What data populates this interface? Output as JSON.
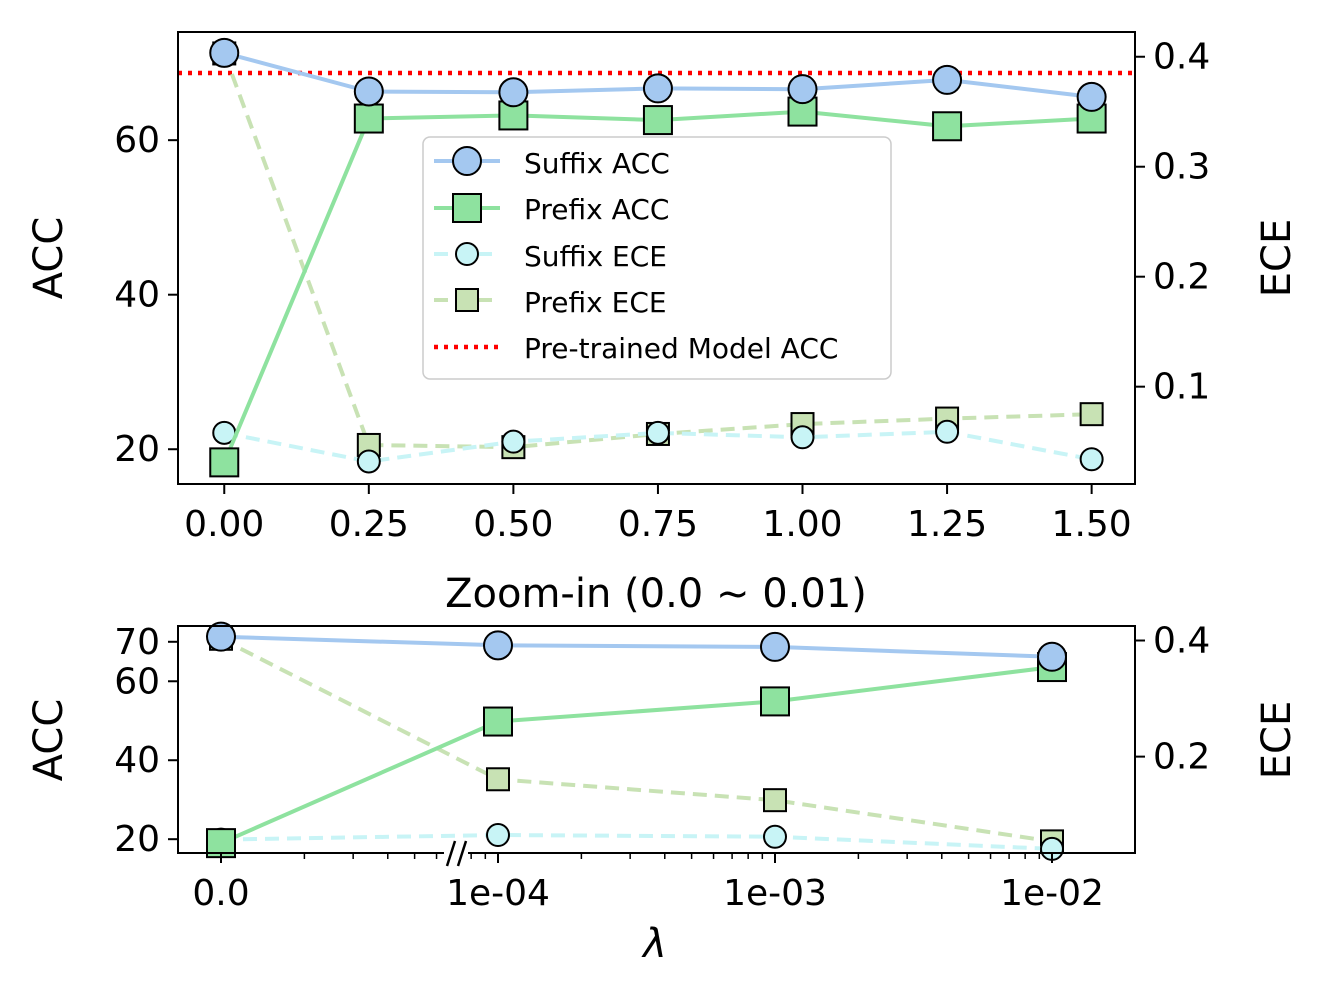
{
  "colors": {
    "suffix_acc": "#a4c8f0",
    "prefix_acc": "#8ee29f",
    "suffix_ece": "#c8f4f6",
    "prefix_ece": "#c8e2b4",
    "pretrained": "#ff0000"
  },
  "chart_data": [
    {
      "type": "line",
      "title": "",
      "xlabel": "",
      "ylabel": "ACC",
      "y2label": "ECE",
      "x": [
        0.0,
        0.25,
        0.5,
        0.75,
        1.0,
        1.25,
        1.5
      ],
      "x_tick_labels": [
        "0.00",
        "0.25",
        "0.50",
        "0.75",
        "1.00",
        "1.25",
        "1.50"
      ],
      "xlim": [
        -0.08,
        1.575
      ],
      "ylim": [
        15.5,
        74
      ],
      "y_ticks": [
        20,
        40,
        60
      ],
      "y2lim": [
        0.0115,
        0.4225
      ],
      "y2_ticks": [
        0.1,
        0.2,
        0.3,
        0.4
      ],
      "legend_position": "center",
      "reference_line": {
        "name": "Pre-trained Model ACC",
        "axis": "left",
        "value": 68.7
      },
      "series": [
        {
          "name": "Suffix ACC",
          "axis": "left",
          "marker": "circle",
          "style": "solid",
          "values": [
            71.3,
            66.3,
            66.2,
            66.7,
            66.6,
            67.8,
            65.6
          ]
        },
        {
          "name": "Prefix ACC",
          "axis": "left",
          "marker": "square",
          "style": "solid",
          "values": [
            18.3,
            62.8,
            63.2,
            62.6,
            63.7,
            61.8,
            62.8
          ]
        },
        {
          "name": "Suffix ECE",
          "axis": "right",
          "marker": "circle",
          "style": "dashed",
          "values": [
            0.058,
            0.032,
            0.05,
            0.058,
            0.054,
            0.059,
            0.034
          ]
        },
        {
          "name": "Prefix ECE",
          "axis": "right",
          "marker": "square",
          "style": "dashed",
          "values": [
            0.403,
            0.047,
            0.045,
            0.057,
            0.066,
            0.071,
            0.075
          ]
        }
      ]
    },
    {
      "type": "line",
      "title": "Zoom-in (0.0 ~ 0.01)",
      "xlabel": "λ",
      "ylabel": "ACC",
      "y2label": "ECE",
      "x": [
        0.0,
        0.0001,
        0.001,
        0.01
      ],
      "x_tick_labels": [
        "0.0",
        "1e-04",
        "1e-03",
        "1e-02"
      ],
      "x_scale": "broken axis: 0.0, then log",
      "ylim": [
        16.5,
        74
      ],
      "y_ticks": [
        20,
        40,
        60,
        70
      ],
      "y2lim": [
        0.034,
        0.425
      ],
      "y2_ticks": [
        0.2,
        0.4
      ],
      "series": [
        {
          "name": "Suffix ACC",
          "axis": "left",
          "marker": "circle",
          "style": "solid",
          "values": [
            71.3,
            69.1,
            68.7,
            66.2
          ]
        },
        {
          "name": "Prefix ACC",
          "axis": "left",
          "marker": "square",
          "style": "solid",
          "values": [
            19.0,
            49.8,
            54.9,
            63.6
          ]
        },
        {
          "name": "Suffix ECE",
          "axis": "right",
          "marker": "circle",
          "style": "dashed",
          "values": [
            0.057,
            0.065,
            0.062,
            0.041
          ]
        },
        {
          "name": "Prefix ECE",
          "axis": "right",
          "marker": "square",
          "style": "dashed",
          "values": [
            0.403,
            0.161,
            0.125,
            0.054
          ]
        }
      ]
    }
  ]
}
